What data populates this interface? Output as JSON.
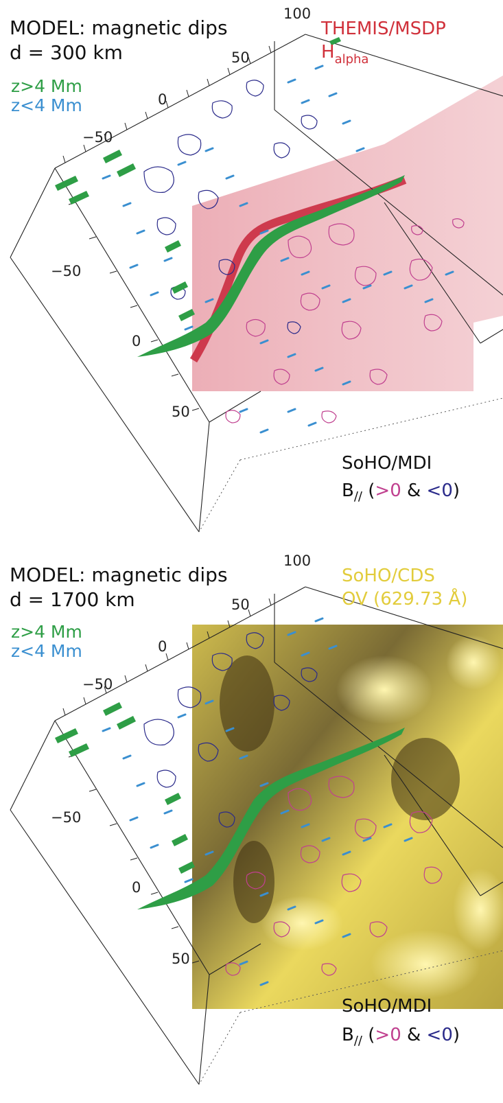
{
  "panels": [
    {
      "model_title": "MODEL: magnetic dips",
      "height_label": "d = 300 km",
      "legend": {
        "high": "z>4 Mm",
        "low": "z<4 Mm"
      },
      "ticks": {
        "t100": "100",
        "t50a": "50",
        "t0a": "0",
        "tm50a": "−50",
        "tm50b": "−50",
        "t0b": "0",
        "t50b": "50"
      },
      "instrument": {
        "name": "THEMIS/MSDP",
        "line": "H",
        "line_sub": "alpha",
        "color": "#d0303a"
      },
      "background": {
        "kind": "H-alpha",
        "color": "#e8a4ac"
      },
      "mdi": {
        "name": "SoHO/MDI",
        "b": "B",
        "b_sub": "//",
        "open": " (",
        "pos": ">0",
        "amp": " & ",
        "neg": "<0",
        "close": ")"
      }
    },
    {
      "model_title": "MODEL: magnetic dips",
      "height_label": "d = 1700 km",
      "legend": {
        "high": "z>4 Mm",
        "low": "z<4 Mm"
      },
      "ticks": {
        "t100": "100",
        "t50a": "50",
        "t0a": "0",
        "tm50a": "−50",
        "tm50b": "−50",
        "t0b": "0",
        "t50b": "50"
      },
      "instrument": {
        "name": "SoHO/CDS",
        "line": "OV (629.73 Å)",
        "line_sub": "",
        "color": "#e2cc3c"
      },
      "background": {
        "kind": "OV",
        "color": "#d8c34a"
      },
      "mdi": {
        "name": "SoHO/MDI",
        "b": "B",
        "b_sub": "//",
        "open": " (",
        "pos": ">0",
        "amp": " & ",
        "neg": "<0",
        "close": ")"
      }
    }
  ],
  "colors": {
    "green_dips": "#2e9e46",
    "blue_dips": "#3a8fd0",
    "contour_pos": "#c0408f",
    "contour_neg": "#2a2a8a"
  }
}
